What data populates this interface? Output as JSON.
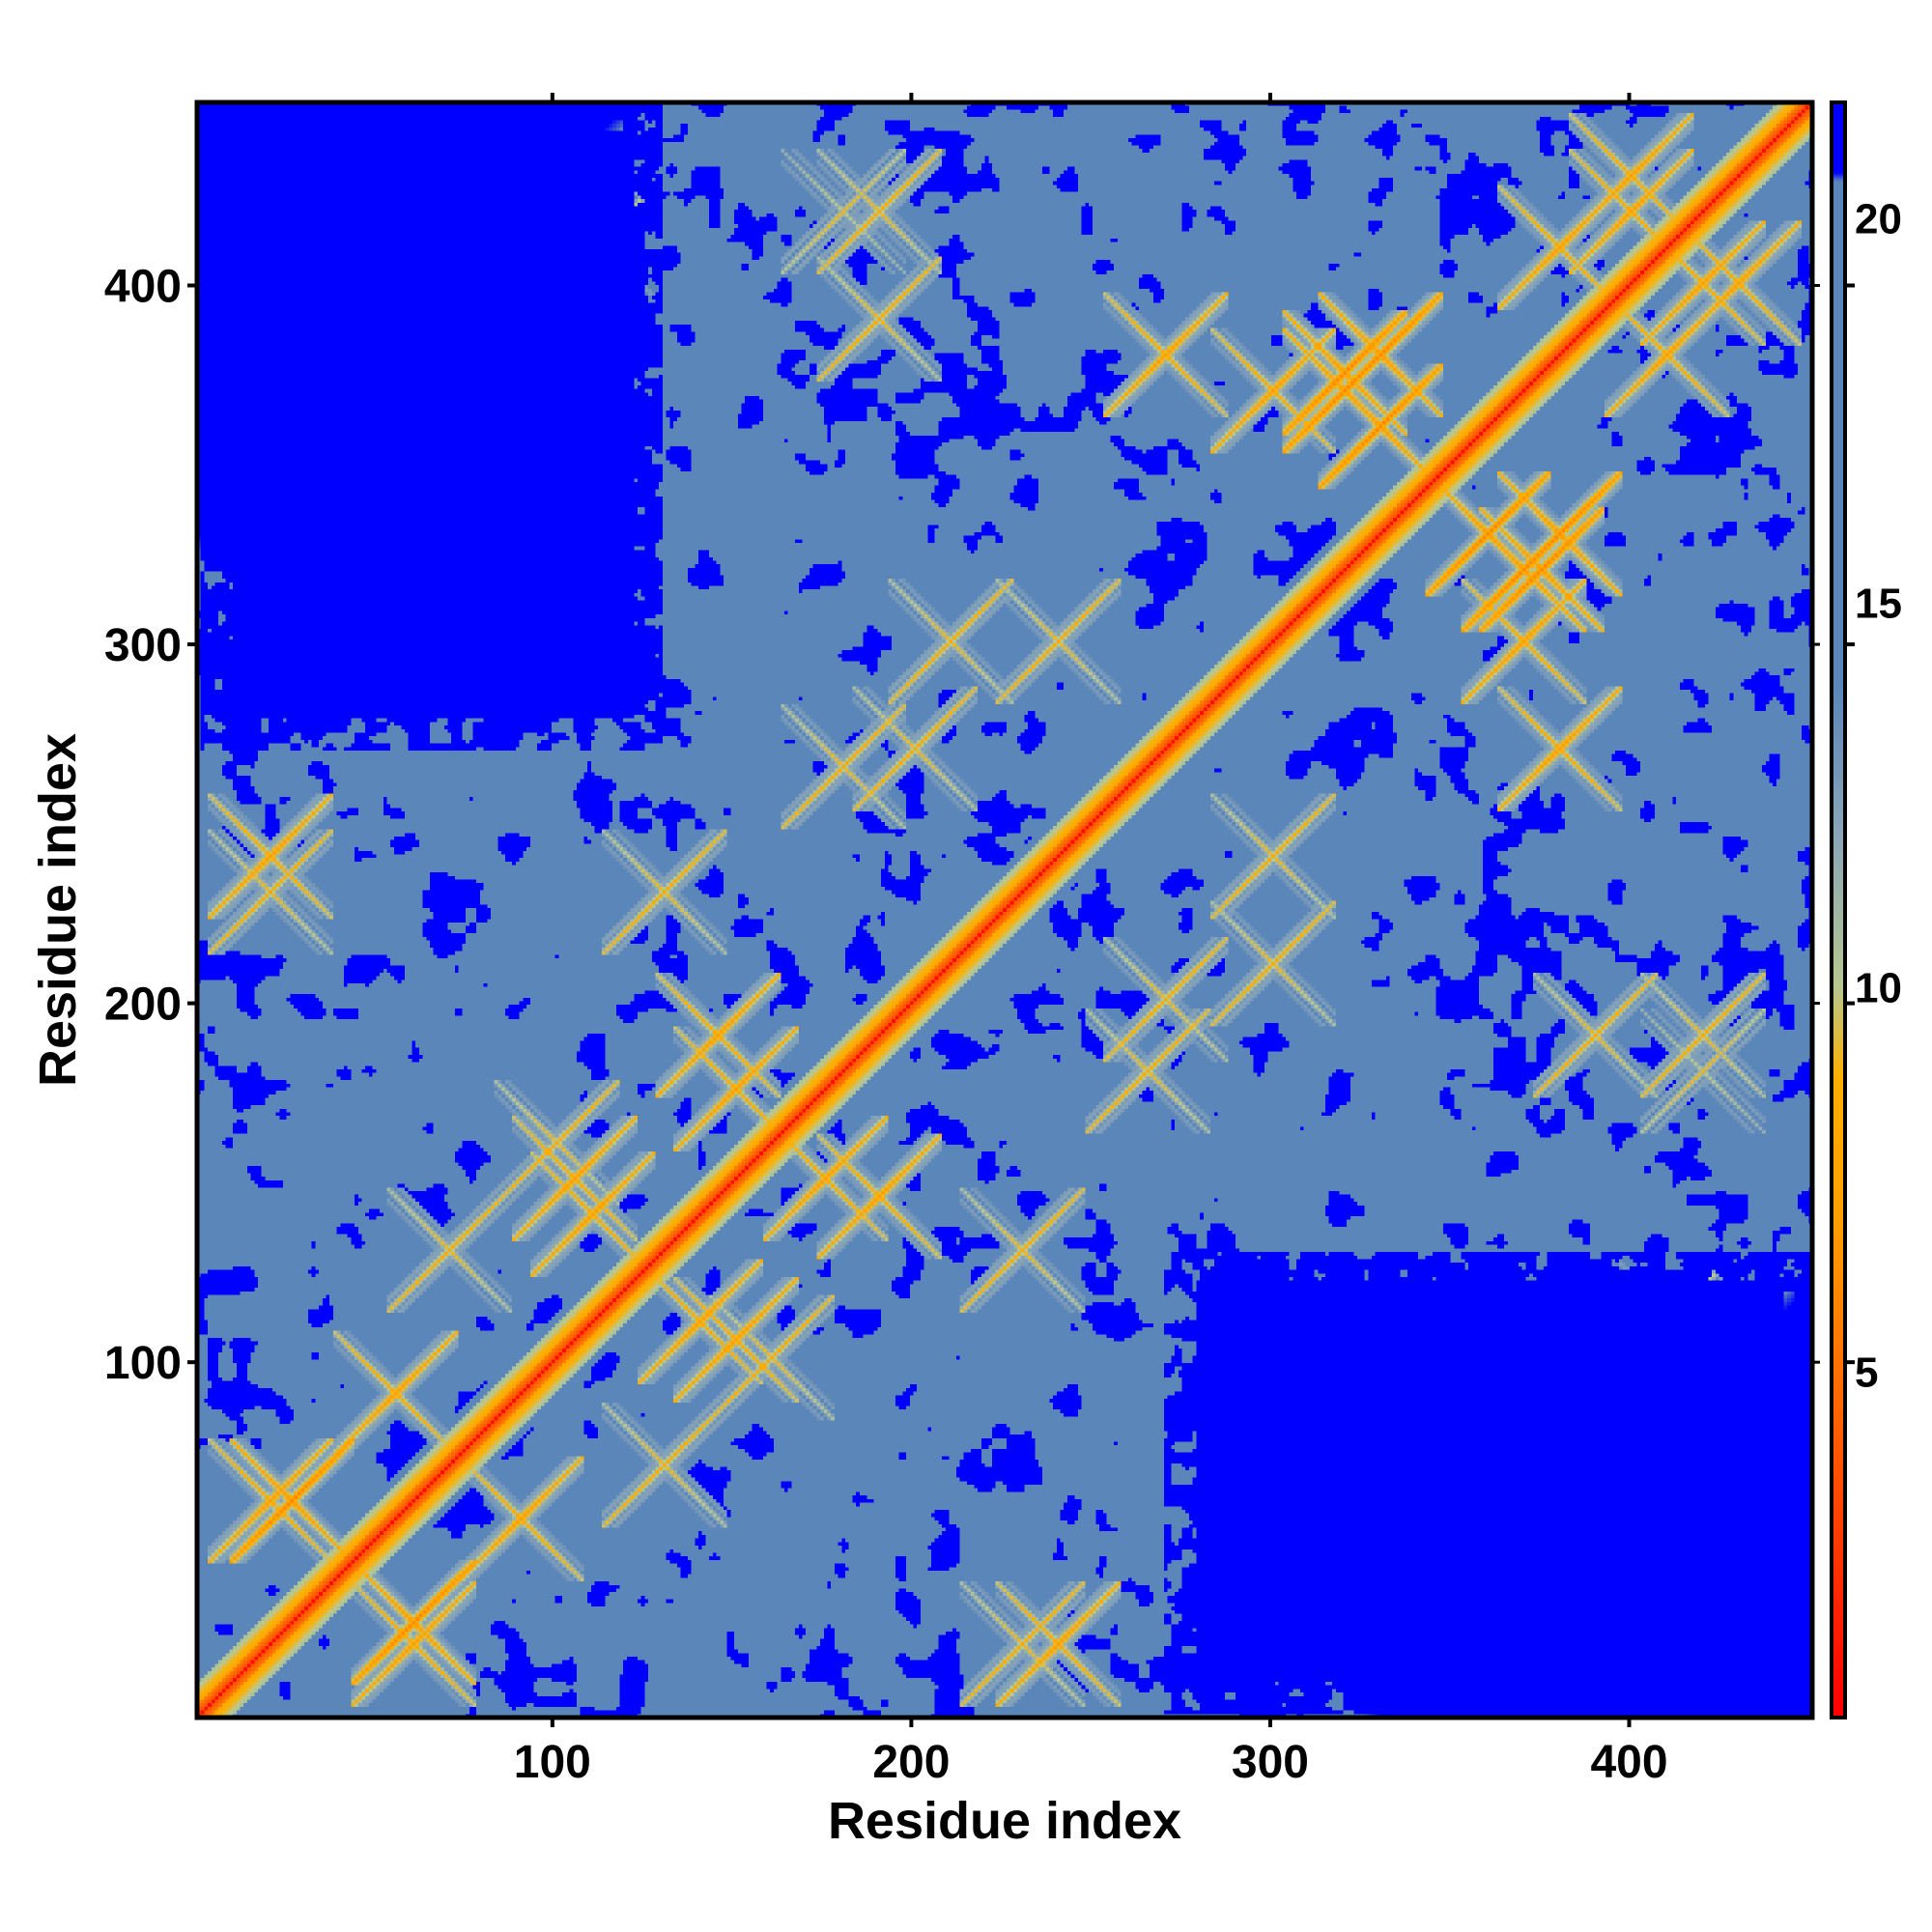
{
  "chart_data": {
    "type": "heatmap",
    "title": "",
    "xlabel": "Residue index",
    "ylabel": "Residue index",
    "xlim": [
      1,
      451
    ],
    "ylim": [
      1,
      451
    ],
    "x_ticks": [
      100,
      200,
      300,
      400
    ],
    "y_ticks": [
      100,
      200,
      300,
      400
    ],
    "colorbar": {
      "ticks": [
        5,
        10,
        15,
        20
      ],
      "range": [
        0.5,
        21.5
      ],
      "stops": [
        {
          "value": 0.5,
          "color": "#ff0000"
        },
        {
          "value": 4.0,
          "color": "#ff5a00"
        },
        {
          "value": 7.0,
          "color": "#ffa000"
        },
        {
          "value": 8.8,
          "color": "#ffb000"
        },
        {
          "value": 10.0,
          "color": "#b8c890"
        },
        {
          "value": 12.0,
          "color": "#8aa6b8"
        },
        {
          "value": 14.0,
          "color": "#5b86ba"
        },
        {
          "value": 20.5,
          "color": "#5b86ba"
        },
        {
          "value": 20.6,
          "color": "#0000ff"
        },
        {
          "value": 21.5,
          "color": "#0000ff"
        }
      ]
    },
    "matrix_size": 451,
    "diagonal_value": 1,
    "contact_features": [
      {
        "i": 26,
        "j": 60,
        "strength": 6
      },
      {
        "i": 55,
        "j": 90,
        "strength": 7
      },
      {
        "i": 70,
        "j": 130,
        "strength": 8
      },
      {
        "i": 105,
        "j": 150,
        "strength": 7
      },
      {
        "i": 145,
        "j": 190,
        "strength": 7
      },
      {
        "i": 100,
        "j": 160,
        "strength": 8
      },
      {
        "i": 20,
        "j": 240,
        "strength": 7
      },
      {
        "i": 130,
        "j": 230,
        "strength": 8
      },
      {
        "i": 200,
        "j": 270,
        "strength": 8
      },
      {
        "i": 180,
        "j": 265,
        "strength": 8
      },
      {
        "i": 240,
        "j": 300,
        "strength": 8
      },
      {
        "i": 210,
        "j": 300,
        "strength": 8
      },
      {
        "i": 270,
        "j": 380,
        "strength": 7
      },
      {
        "i": 300,
        "j": 370,
        "strength": 7
      },
      {
        "i": 330,
        "j": 380,
        "strength": 6
      },
      {
        "i": 320,
        "j": 370,
        "strength": 6
      },
      {
        "i": 360,
        "j": 330,
        "strength": 6
      },
      {
        "i": 375,
        "j": 320,
        "strength": 6
      },
      {
        "i": 380,
        "j": 270,
        "strength": 7
      },
      {
        "i": 420,
        "j": 400,
        "strength": 7
      },
      {
        "i": 400,
        "j": 430,
        "strength": 7
      },
      {
        "i": 380,
        "j": 410,
        "strength": 7
      },
      {
        "i": 190,
        "j": 420,
        "strength": 8
      },
      {
        "i": 110,
        "j": 410,
        "strength": 9
      },
      {
        "i": 390,
        "j": 190,
        "strength": 8
      },
      {
        "i": 420,
        "j": 180,
        "strength": 9
      },
      {
        "i": 230,
        "j": 20,
        "strength": 8
      },
      {
        "i": 140,
        "j": 110,
        "strength": 7
      },
      {
        "i": 175,
        "j": 150,
        "strength": 7
      },
      {
        "i": 60,
        "j": 20,
        "strength": 7
      }
    ],
    "far_regions": [
      {
        "label": "top-left",
        "i_range": [
          1,
          130
        ],
        "j_range": [
          280,
          451
        ]
      },
      {
        "label": "bottom-right",
        "i_range": [
          270,
          451
        ],
        "j_range": [
          1,
          130
        ]
      }
    ]
  }
}
